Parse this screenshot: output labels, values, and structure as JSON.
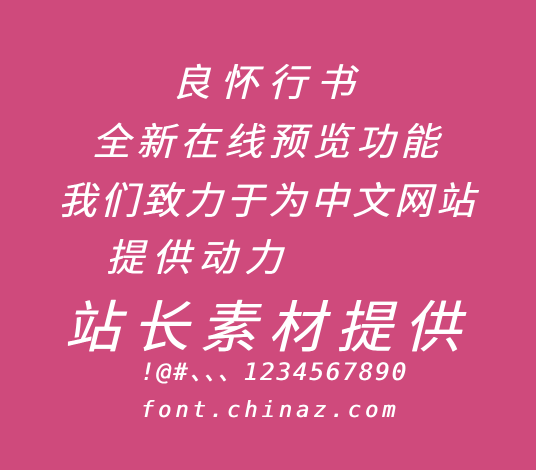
{
  "background_color": "#cf4a7c",
  "text_color": "#ffffff",
  "lines": [
    "良怀行书",
    "全新在线预览功能",
    "我们致力于为中文网站",
    "提供动力",
    "站长素材提供",
    "!@#、、、1234567890",
    "font.chinaz.com"
  ]
}
